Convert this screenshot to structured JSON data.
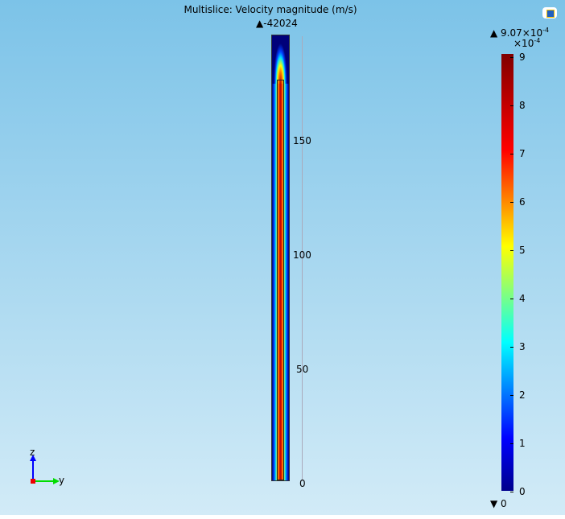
{
  "title": "Multislice: Velocity magnitude (m/s)",
  "top_label": "-42024",
  "z_axis_ticks": [
    "150",
    "100",
    "50",
    "0"
  ],
  "colorbar": {
    "max_label": "9.07×10",
    "max_exp": "-4",
    "scale_label": "×10",
    "scale_exp": "-4",
    "ticks": [
      "9",
      "8",
      "7",
      "6",
      "5",
      "4",
      "3",
      "2",
      "1",
      "0"
    ],
    "min_label": "0",
    "colormap": "rainbow"
  },
  "triad": {
    "z": "z",
    "y": "y"
  }
}
